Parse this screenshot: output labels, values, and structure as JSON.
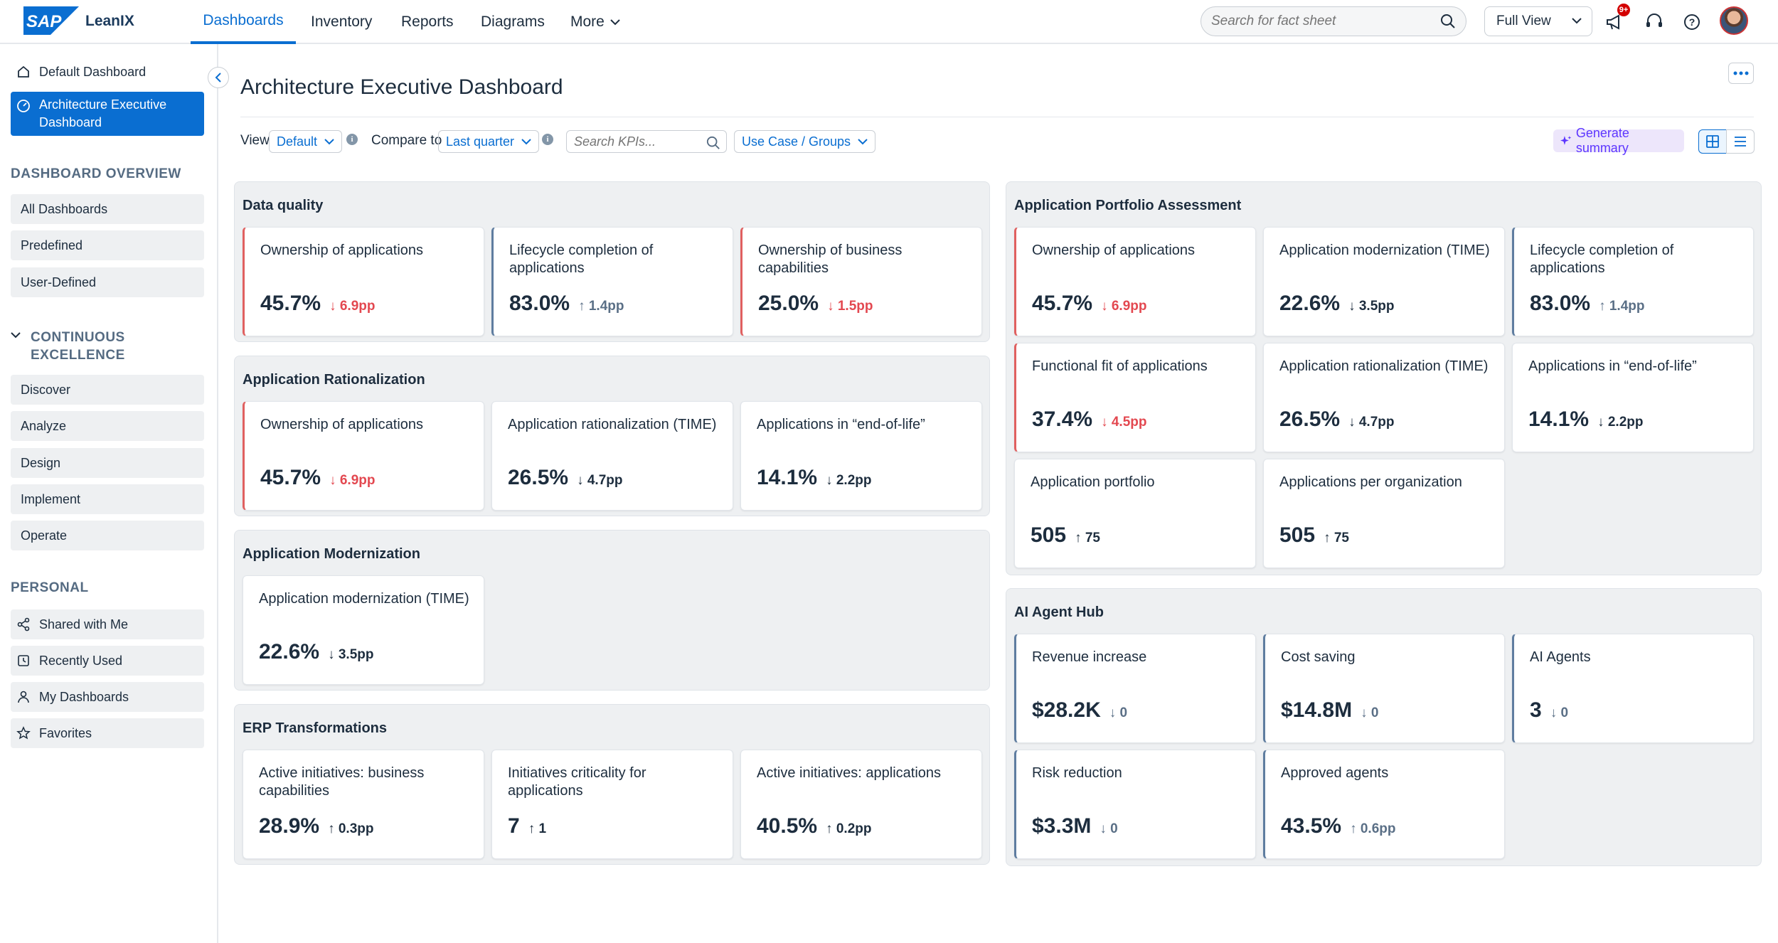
{
  "header": {
    "brand": "LeanIX",
    "nav": [
      "Dashboards",
      "Inventory",
      "Reports",
      "Diagrams",
      "More"
    ],
    "search_placeholder": "Search for fact sheet",
    "view_select": "Full View",
    "notification_count": "9+"
  },
  "sidebar": {
    "top_items": [
      "Default Dashboard",
      "Architecture Executive Dashboard"
    ],
    "overview_title": "DASHBOARD OVERVIEW",
    "overview_items": [
      "All Dashboards",
      "Predefined",
      "User-Defined"
    ],
    "ce_title_1": "CONTINUOUS",
    "ce_title_2": "EXCELLENCE",
    "ce_items": [
      "Discover",
      "Analyze",
      "Design",
      "Implement",
      "Operate"
    ],
    "personal_title": "PERSONAL",
    "personal_items": [
      "Shared with Me",
      "Recently Used",
      "My Dashboards",
      "Favorites"
    ]
  },
  "main": {
    "title": "Architecture Executive Dashboard",
    "view_label": "View",
    "view_value": "Default",
    "compare_label": "Compare to",
    "compare_value": "Last quarter",
    "kpi_search_placeholder": "Search KPIs...",
    "group_value": "Use Case / Groups",
    "generate_summary": "Generate summary"
  },
  "panels": {
    "data_quality": {
      "title": "Data quality",
      "cards": [
        {
          "title": "Ownership of applications",
          "value": "45.7%",
          "delta": "↓ 6.9pp"
        },
        {
          "title": "Lifecycle completion of applications",
          "value": "83.0%",
          "delta": "↑ 1.4pp"
        },
        {
          "title": "Ownership of business capabilities",
          "value": "25.0%",
          "delta": "↓ 1.5pp"
        }
      ]
    },
    "app_rationalization": {
      "title": "Application Rationalization",
      "cards": [
        {
          "title": "Ownership of applications",
          "value": "45.7%",
          "delta": "↓ 6.9pp"
        },
        {
          "title": "Application rationalization (TIME)",
          "value": "26.5%",
          "delta": "↓ 4.7pp"
        },
        {
          "title": "Applications in “end-of-life”",
          "value": "14.1%",
          "delta": "↓ 2.2pp"
        }
      ]
    },
    "app_modernization": {
      "title": "Application Modernization",
      "cards": [
        {
          "title": "Application modernization (TIME)",
          "value": "22.6%",
          "delta": "↓ 3.5pp"
        }
      ]
    },
    "erp": {
      "title": "ERP Transformations",
      "cards": [
        {
          "title": "Active initiatives: business capabilities",
          "value": "28.9%",
          "delta": "↑ 0.3pp"
        },
        {
          "title": "Initiatives criticality for applications",
          "value": "7",
          "delta": "↑ 1"
        },
        {
          "title": "Active initiatives: applications",
          "value": "40.5%",
          "delta": "↑ 0.2pp"
        }
      ]
    },
    "apa": {
      "title": "Application Portfolio Assessment",
      "cards": [
        {
          "title": "Ownership of applications",
          "value": "45.7%",
          "delta": "↓ 6.9pp"
        },
        {
          "title": "Application modernization (TIME)",
          "value": "22.6%",
          "delta": "↓ 3.5pp"
        },
        {
          "title": "Lifecycle completion of applications",
          "value": "83.0%",
          "delta": "↑ 1.4pp"
        },
        {
          "title": "Functional fit of applications",
          "value": "37.4%",
          "delta": "↓ 4.5pp"
        },
        {
          "title": "Application rationalization (TIME)",
          "value": "26.5%",
          "delta": "↓ 4.7pp"
        },
        {
          "title": "Applications in “end-of-life”",
          "value": "14.1%",
          "delta": "↓ 2.2pp"
        },
        {
          "title": "Application portfolio",
          "value": "505",
          "delta": "↑ 75"
        },
        {
          "title": "Applications per organization",
          "value": "505",
          "delta": "↑ 75"
        }
      ]
    },
    "ai": {
      "title": "AI Agent Hub",
      "cards": [
        {
          "title": "Revenue increase",
          "value": "$28.2K",
          "delta": "↓ 0"
        },
        {
          "title": "Cost saving",
          "value": "$14.8M",
          "delta": "↓ 0"
        },
        {
          "title": "AI Agents",
          "value": "3",
          "delta": "↓ 0"
        },
        {
          "title": "Risk reduction",
          "value": "$3.3M",
          "delta": "↓ 0"
        },
        {
          "title": "Approved agents",
          "value": "43.5%",
          "delta": "↑ 0.6pp"
        }
      ]
    }
  },
  "colors": {
    "accent": "#0a6ed1",
    "negative": "#e34850",
    "negative_border": "#e06060",
    "neutral_border": "#5f7da0",
    "panel_bg": "#eef0f2"
  }
}
